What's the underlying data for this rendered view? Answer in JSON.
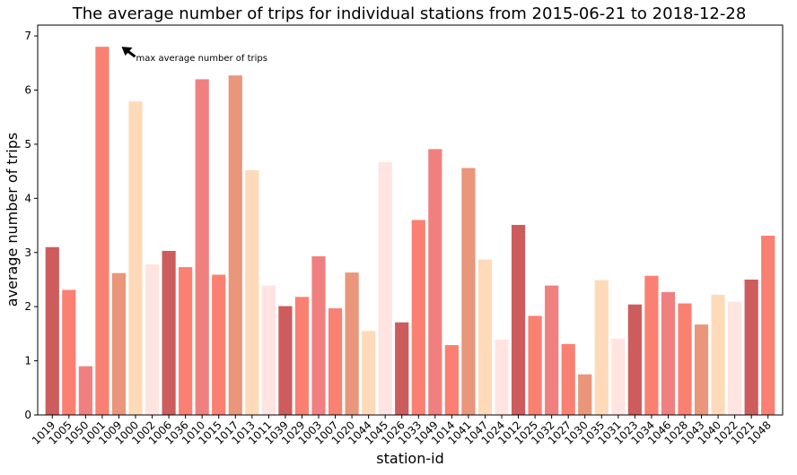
{
  "chart_data": {
    "type": "bar",
    "title": "The average number of trips for individual  stations  from 2015-06-21 to 2018-12-28",
    "xlabel": "station-id",
    "ylabel": "average number of trips",
    "ylim": [
      0,
      7.2
    ],
    "yticks": [
      "0",
      "1",
      "2",
      "3",
      "4",
      "5",
      "6",
      "7"
    ],
    "grid": false,
    "categories": [
      "1019",
      "1005",
      "1050",
      "1001",
      "1009",
      "1000",
      "1002",
      "1006",
      "1036",
      "1010",
      "1015",
      "1017",
      "1013",
      "1011",
      "1039",
      "1029",
      "1003",
      "1007",
      "1020",
      "1044",
      "1045",
      "1026",
      "1033",
      "1049",
      "1014",
      "1041",
      "1047",
      "1024",
      "1012",
      "1025",
      "1032",
      "1027",
      "1030",
      "1035",
      "1031",
      "1023",
      "1034",
      "1046",
      "1028",
      "1043",
      "1040",
      "1022",
      "1021",
      "1048"
    ],
    "values": [
      3.1,
      2.31,
      0.9,
      6.8,
      2.62,
      5.79,
      2.78,
      3.03,
      2.73,
      6.2,
      2.59,
      6.27,
      4.52,
      2.39,
      2.01,
      2.18,
      2.93,
      1.97,
      2.63,
      1.55,
      4.67,
      1.71,
      3.6,
      4.91,
      1.29,
      4.56,
      2.87,
      1.39,
      3.51,
      1.83,
      2.39,
      1.31,
      0.75,
      2.49,
      1.41,
      2.04,
      2.57,
      2.27,
      2.06,
      1.67,
      2.22,
      2.09,
      2.5,
      3.31
    ],
    "colors": [
      "#cd5c5c",
      "#fa8072",
      "#f08080",
      "#fa8072",
      "#e9967a",
      "#ffdab9",
      "#ffe4e1",
      "#cd5c5c",
      "#fa8072",
      "#f08080",
      "#fa8072",
      "#e9967a",
      "#ffdab9",
      "#ffe4e1",
      "#cd5c5c",
      "#fa8072",
      "#f08080",
      "#fa8072",
      "#e9967a",
      "#ffdab9",
      "#ffe4e1",
      "#cd5c5c",
      "#fa8072",
      "#f08080",
      "#fa8072",
      "#e9967a",
      "#ffdab9",
      "#ffe4e1",
      "#cd5c5c",
      "#fa8072",
      "#f08080",
      "#fa8072",
      "#e9967a",
      "#ffdab9",
      "#ffe4e1",
      "#cd5c5c",
      "#fa8072",
      "#f08080",
      "#fa8072",
      "#e9967a",
      "#ffdab9",
      "#ffe4e1",
      "#cd5c5c",
      "#fa8072"
    ],
    "annotation": {
      "text": "max average number of trips",
      "target_category": "1001",
      "target_value": 6.8
    }
  }
}
